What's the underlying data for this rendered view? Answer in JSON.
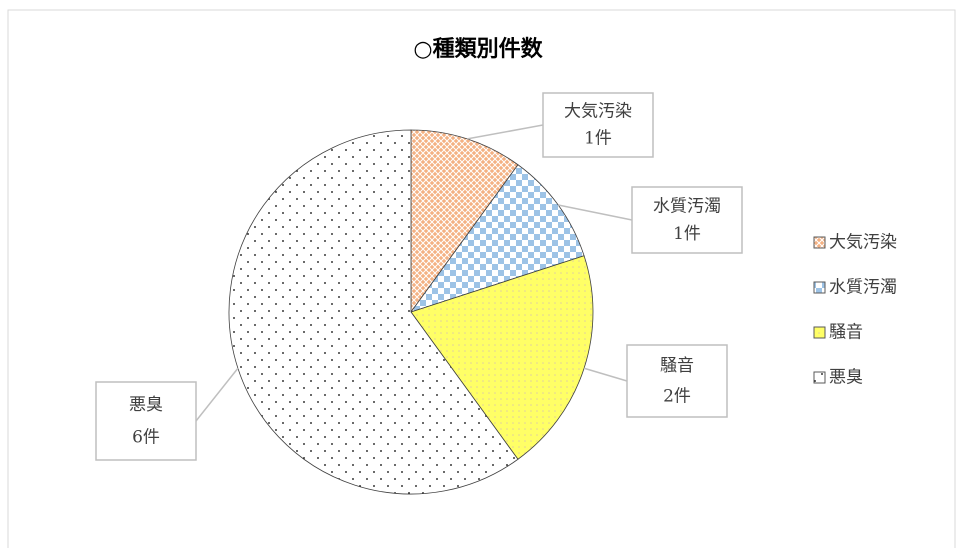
{
  "chart_data": {
    "type": "pie",
    "title": "○種類別件数",
    "categories": [
      "大気汚染",
      "水質汚濁",
      "騒音",
      "悪臭"
    ],
    "values": [
      1,
      1,
      2,
      6
    ],
    "value_labels": [
      "1件",
      "1件",
      "2件",
      "6件"
    ],
    "colors": [
      "#f4b183",
      "#9dc3e6",
      "#ffff66",
      "#ffffff"
    ],
    "legend": "right"
  }
}
